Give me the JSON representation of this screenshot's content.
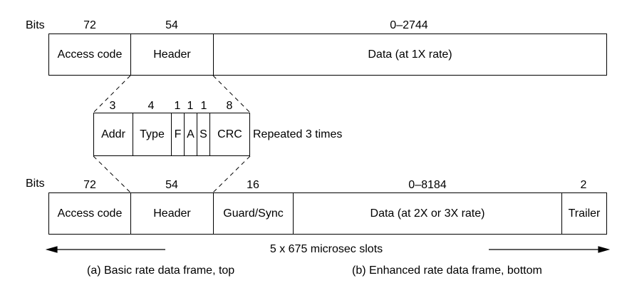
{
  "top": {
    "bits_label": "Bits",
    "widths": [
      "72",
      "54",
      "0–2744"
    ],
    "fields": [
      "Access code",
      "Header",
      "Data (at 1X rate)"
    ]
  },
  "header_detail": {
    "widths": [
      "3",
      "4",
      "1",
      "1",
      "1",
      "8"
    ],
    "fields": [
      "Addr",
      "Type",
      "F",
      "A",
      "S",
      "CRC"
    ],
    "note": "Repeated 3 times"
  },
  "bottom": {
    "bits_label": "Bits",
    "widths": [
      "72",
      "54",
      "16",
      "0–8184",
      "2"
    ],
    "fields": [
      "Access code",
      "Header",
      "Guard/Sync",
      "Data (at 2X or 3X rate)",
      "Trailer"
    ]
  },
  "slots_label": "5 x 675 microsec slots",
  "captions": {
    "a": "(a) Basic rate data frame, top",
    "b": "(b) Enhanced rate data frame, bottom"
  }
}
